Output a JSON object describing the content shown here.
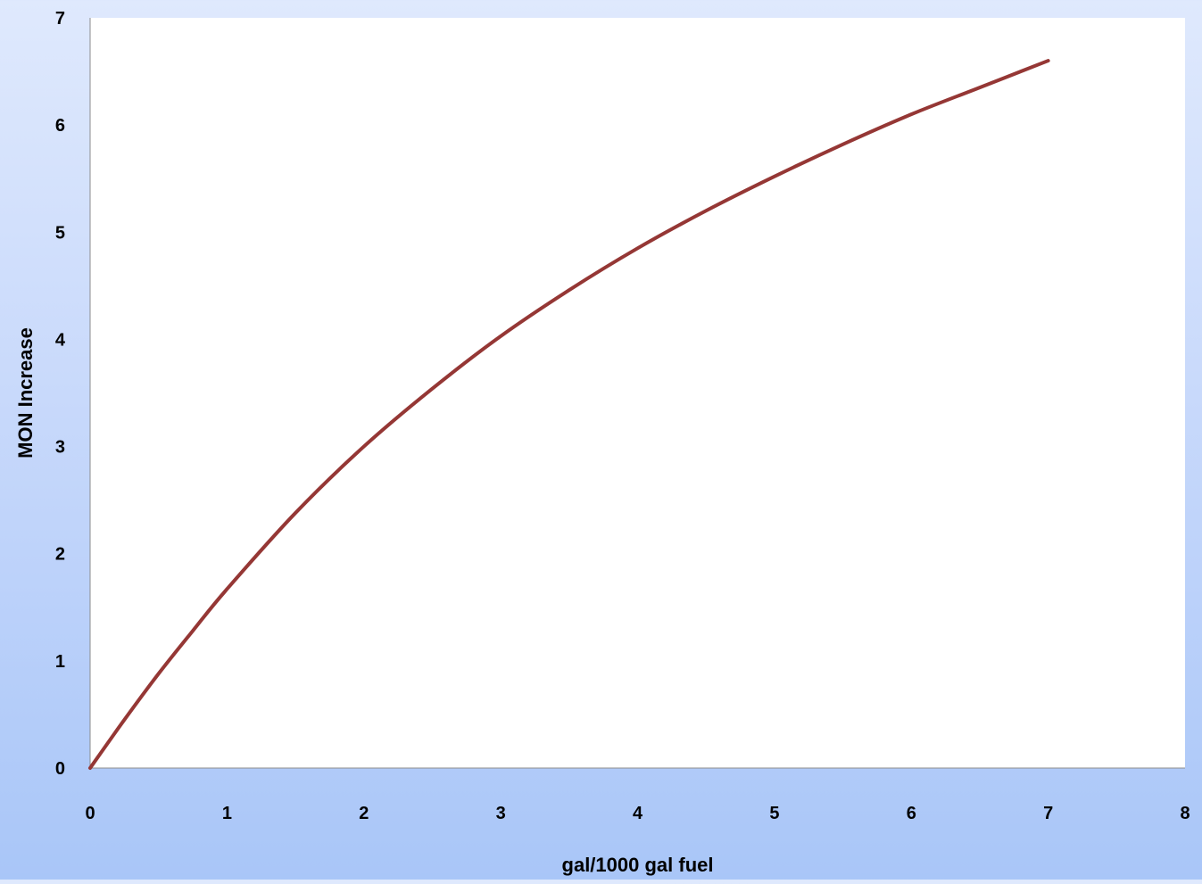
{
  "chart_data": {
    "type": "line",
    "title": "",
    "xlabel": "gal/1000 gal fuel",
    "ylabel": "MON Increase",
    "xlim": [
      0,
      8
    ],
    "ylim": [
      0,
      7
    ],
    "x_ticks": [
      "0",
      "1",
      "2",
      "3",
      "4",
      "5",
      "6",
      "7",
      "8"
    ],
    "y_ticks": [
      "0",
      "1",
      "2",
      "3",
      "4",
      "5",
      "6",
      "7"
    ],
    "grid": false,
    "legend": "none",
    "series": [
      {
        "color": "#953735",
        "x": [
          0,
          0.25,
          0.5,
          0.75,
          1,
          1.5,
          2,
          2.5,
          3,
          3.5,
          4,
          4.5,
          5,
          5.5,
          6,
          6.5,
          7
        ],
        "y": [
          0,
          0.45,
          0.88,
          1.28,
          1.67,
          2.38,
          3.0,
          3.54,
          4.03,
          4.46,
          4.85,
          5.2,
          5.52,
          5.82,
          6.1,
          6.35,
          6.6
        ]
      }
    ]
  }
}
